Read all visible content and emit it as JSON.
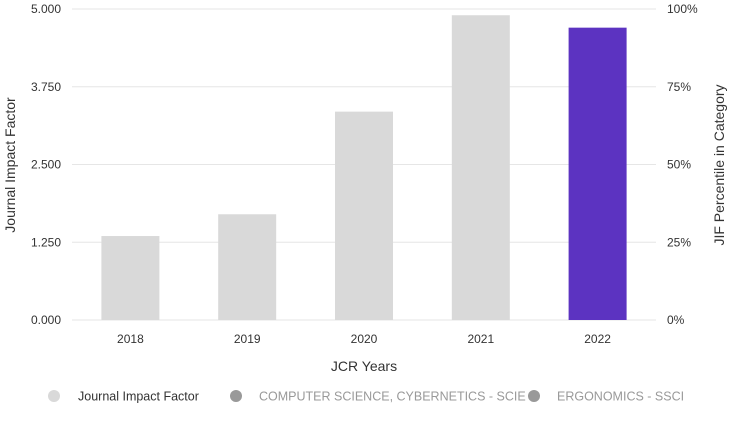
{
  "chart_data": {
    "type": "bar",
    "categories": [
      "2018",
      "2019",
      "2020",
      "2021",
      "2022"
    ],
    "series": [
      {
        "name": "Journal Impact Factor",
        "values": [
          1.35,
          1.7,
          3.35,
          4.9,
          4.7
        ]
      }
    ],
    "highlight_index": 4,
    "colors": {
      "bar": "#d9d9d9",
      "highlight": "#5c33c1",
      "grid": "#e6e6e6",
      "legend_inactive": "#999999",
      "legend_text_inactive": "#999999",
      "text": "#333333"
    },
    "xlabel": "JCR Years",
    "ylabel": "Journal Impact Factor",
    "ylabel_right": "JIF Percentile in Category",
    "ylim": [
      0,
      5
    ],
    "yticks": [
      "0.000",
      "1.250",
      "2.500",
      "3.750",
      "5.000"
    ],
    "ylim_right": [
      0,
      100
    ],
    "yticks_right": [
      "0%",
      "25%",
      "50%",
      "75%",
      "100%"
    ],
    "grid": true,
    "legend": {
      "placement": "bottom-left",
      "items": [
        {
          "label": "Journal Impact Factor",
          "color": "#d9d9d9",
          "active": true
        },
        {
          "label": "COMPUTER SCIENCE, CYBERNETICS - SCIE",
          "color": "#999999",
          "active": false
        },
        {
          "label": "ERGONOMICS - SSCI",
          "color": "#999999",
          "active": false
        }
      ]
    }
  }
}
